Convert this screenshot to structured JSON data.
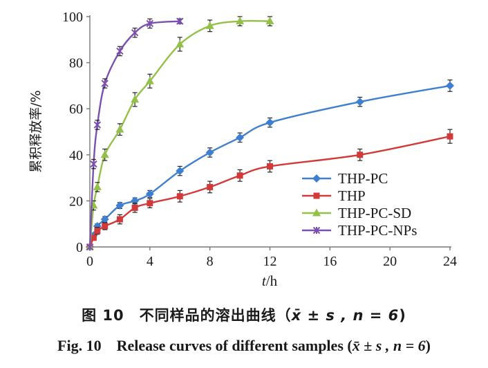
{
  "chart_data": {
    "type": "line",
    "ylabel": "累积释放率/%",
    "xlabel_var": "t",
    "xlabel_unit": "/h",
    "xlim": [
      0,
      24
    ],
    "ylim": [
      0,
      100
    ],
    "xticks": [
      0,
      4,
      8,
      12,
      16,
      20,
      24
    ],
    "yticks": [
      0,
      20,
      40,
      60,
      80,
      100
    ],
    "legend_position": "right-middle",
    "series": [
      {
        "name": "THP-PC",
        "color": "#3f7fd0",
        "marker": "diamond",
        "x": [
          0,
          0.25,
          0.5,
          1,
          2,
          3,
          4,
          6,
          8,
          10,
          12,
          18,
          24
        ],
        "y": [
          0,
          5,
          9,
          12,
          18,
          20,
          23,
          33,
          41,
          47.5,
          54,
          63,
          70
        ],
        "err": [
          0,
          1,
          1,
          1.2,
          1.3,
          1.3,
          1.5,
          2,
          2,
          2,
          2,
          2,
          2.5
        ]
      },
      {
        "name": "THP",
        "color": "#d23a3a",
        "marker": "square",
        "x": [
          0,
          0.25,
          0.5,
          1,
          2,
          3,
          4,
          6,
          8,
          10,
          12,
          18,
          24
        ],
        "y": [
          0,
          4,
          7,
          9,
          12,
          17,
          19,
          22,
          26,
          31,
          35,
          40,
          48
        ],
        "err": [
          0,
          1,
          1.5,
          1.5,
          2,
          2,
          2,
          2.5,
          2.5,
          2.5,
          2.5,
          2.5,
          3
        ]
      },
      {
        "name": "THP-PC-SD",
        "color": "#93c047",
        "marker": "triangle",
        "x": [
          0,
          0.25,
          0.5,
          1,
          2,
          3,
          4,
          6,
          8,
          10,
          12
        ],
        "y": [
          0,
          18,
          26,
          40,
          51,
          64,
          72,
          88,
          96,
          98,
          98
        ],
        "err": [
          0,
          2,
          2,
          2.5,
          2.5,
          3,
          3,
          3,
          2.5,
          2,
          2
        ]
      },
      {
        "name": "THP-PC-NPs",
        "color": "#7b4fae",
        "marker": "x",
        "x": [
          0,
          0.25,
          0.5,
          1,
          2,
          3,
          4,
          6
        ],
        "y": [
          0,
          36,
          53,
          71,
          85,
          93,
          97,
          98
        ],
        "err": [
          0,
          2,
          2,
          2,
          2,
          2,
          2,
          1
        ]
      }
    ]
  },
  "caption": {
    "zh_prefix": "图 10　不同样品的溶出曲线（",
    "en_prefix": "Fig. 10　Release curves of different samples (",
    "stat": "x̄ ± s , n = 6",
    "suffix": ")"
  }
}
